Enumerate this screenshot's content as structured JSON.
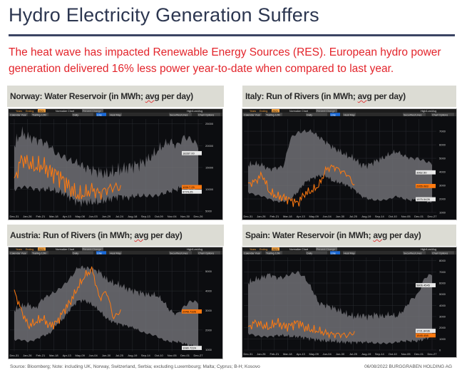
{
  "title": "Hydro Electricity Generation Suffers",
  "lead": "The heat wave has impacted Renewable Energy Sources (RES). European hydro power generation delivered 16% less power year-to-date when compared to last year.",
  "footer": {
    "source": "Source: Bloomberg; Note: including UK, Norway, Switzerland, Serbia; excluding Luxembourg; Malta; Cyprus; B-H; Kosovo",
    "date_company": "06/08/2022  BURGGRABEN HOLDING AG"
  },
  "toolbar": {
    "years": "Years",
    "ending": "Ending",
    "year": "2021",
    "normalize": "Normalize Chart",
    "percent": "Percent Change",
    "hla": "High/Low/Avg",
    "calendar": "Calendar Year",
    "trailing": "Trailing 12M",
    "daily": "Daily",
    "line": "Line",
    "heatmap": "Heat Map",
    "securities": "Securities/Lines",
    "options": "Chart Options"
  },
  "colors": {
    "accent": "#e3242b",
    "line": "#ff7a10",
    "band": "#6e6e70",
    "bg": "#0c0d10"
  },
  "chart_data": [
    {
      "type": "area",
      "panel": "norway",
      "title_pre": "Norway: Water Reservoir (in MWh; ",
      "title_u": "avg",
      "title_post": " per day)",
      "ylim": [
        4700,
        26100
      ],
      "yticks": [
        5000,
        10000,
        15000,
        20000,
        25000
      ],
      "xlabels": [
        "Dec-31",
        "Jan-26",
        "Feb-21",
        "Mar-18",
        "Apr-13",
        "May-08",
        "Jun-03",
        "Jun-29",
        "Jul-24",
        "Aug-18",
        "Sep-13",
        "Oct-09",
        "Nov-04",
        "Nov-30",
        "Dec-26"
      ],
      "value_labels": [
        {
          "v": 18287,
          "text": "18287.00",
          "hl": false
        },
        {
          "v": 10517,
          "text": "10517.25",
          "hl": true
        },
        {
          "v": 9774.25,
          "text": "9774.25",
          "hl": false
        }
      ],
      "high": [
        20000,
        23000,
        22000,
        21500,
        21000,
        20000,
        18000,
        17500,
        16500,
        16000,
        15000,
        14500,
        14000,
        13500,
        14000,
        14500,
        15000,
        15500,
        16000,
        17000,
        18500,
        20000,
        21000,
        20000,
        22000,
        21500,
        20000
      ],
      "low": [
        10000,
        10500,
        10500,
        10000,
        10000,
        10000,
        9500,
        9000,
        8000,
        7000,
        7000,
        7000,
        7000,
        7500,
        8000,
        8500,
        8000,
        8500,
        8500,
        8500,
        8500,
        9000,
        9500,
        10000,
        10500,
        10000,
        10000
      ],
      "current": [
        12000,
        17000,
        16000,
        15000,
        15500,
        14000,
        13500,
        12000,
        10000,
        8500,
        9000,
        10000,
        9000,
        10000,
        10500,
        10500
      ],
      "jitter": 2200
    },
    {
      "type": "area",
      "panel": "italy",
      "title_pre": "Italy: Run of Rivers (in MWh; ",
      "title_u": "avg",
      "title_post": " per day)",
      "ylim": [
        1000,
        7900
      ],
      "yticks": [
        1000,
        2000,
        3000,
        4000,
        5000,
        6000,
        7000
      ],
      "xlabels": [
        "Dec-31",
        "Jan-26",
        "Feb-21",
        "Mar-18",
        "Apr-13",
        "May-09",
        "Jun-04",
        "Jun-30",
        "Jul-25",
        "Aug-19",
        "Sep-14",
        "Oct-10",
        "Nov-05",
        "Dec-01",
        "Dec-27"
      ],
      "value_labels": [
        {
          "v": 3962.5,
          "text": "3962.50",
          "hl": false
        },
        {
          "v": 2955.083,
          "text": "2955.083",
          "hl": true
        },
        {
          "v": 1975.5426,
          "text": "1975.5426",
          "hl": false
        }
      ],
      "high": [
        4500,
        4600,
        4500,
        4200,
        4300,
        4400,
        6500,
        6900,
        7000,
        7000,
        6600,
        6200,
        5800,
        5500,
        5200,
        5000,
        4500,
        4500,
        4800,
        5000,
        5300,
        5500,
        5200,
        5000,
        5000,
        4800,
        4600
      ],
      "low": [
        2500,
        2300,
        2200,
        2000,
        1800,
        1800,
        2000,
        2500,
        3200,
        3500,
        3700,
        3700,
        3300,
        3200,
        3000,
        2700,
        2200,
        2000,
        1900,
        1900,
        2000,
        2200,
        2000,
        1900,
        2000,
        1900,
        1700
      ],
      "current": [
        3100,
        3300,
        3800,
        2500,
        2200,
        2100,
        1900,
        1700,
        2400,
        2600,
        3000,
        4200,
        4400,
        4100,
        3800,
        3000
      ],
      "jitter": 350
    },
    {
      "type": "area",
      "panel": "austria",
      "title_pre": "Austria: Run of Rivers (in MWh; ",
      "title_u": "avg",
      "title_post": " per day)",
      "ylim": [
        900,
        5720
      ],
      "yticks": [
        1000,
        2000,
        3000,
        4000,
        5000
      ],
      "xlabels": [
        "Dec-31",
        "Jan-26",
        "Feb-21",
        "Mar-18",
        "Apr-13",
        "May-09",
        "Jun-04",
        "Jun-30",
        "Jul-25",
        "Aug-19",
        "Sep-14",
        "Oct-10",
        "Nov-05",
        "Dec-01",
        "Dec-27"
      ],
      "value_labels": [
        {
          "v": 2948.73,
          "text": "2948.7326",
          "hl": true
        },
        {
          "v": 1080.72,
          "text": "1080.7224",
          "hl": false
        }
      ],
      "high": [
        3000,
        3200,
        3300,
        3100,
        3600,
        3800,
        4000,
        4300,
        4700,
        5200,
        5200,
        5100,
        5000,
        4600,
        4400,
        4300,
        4100,
        4000,
        3900,
        3800,
        3800,
        3500,
        3000,
        2800,
        3200,
        3500,
        3400
      ],
      "low": [
        1500,
        1500,
        1400,
        1500,
        1700,
        1800,
        2300,
        2600,
        3100,
        3500,
        3500,
        3300,
        3000,
        2600,
        2400,
        2300,
        2200,
        2100,
        1900,
        1800,
        1700,
        1500,
        1400,
        1400,
        1300,
        1200,
        1100
      ],
      "current": [
        4000,
        3000,
        2200,
        2400,
        2600,
        2200,
        2400,
        3000,
        3500,
        4200,
        4800,
        5100,
        3600,
        4000,
        2600,
        3000
      ],
      "jitter": 250
    },
    {
      "type": "area",
      "panel": "spain",
      "title_pre": "Spain: Water Reservoir (in MWh; ",
      "title_u": "avg",
      "title_post": " per day)",
      "ylim": [
        0,
        8300
      ],
      "yticks": [
        0,
        1000,
        2000,
        3000,
        4000,
        5000,
        6000,
        7000,
        8000
      ],
      "xlabels": [
        "Dec-31",
        "Jan-26",
        "Feb-21",
        "Mar-18",
        "Apr-13",
        "May-09",
        "Jun-04",
        "Jun-30",
        "Jul-25",
        "Aug-19",
        "Sep-14",
        "Oct-10",
        "Nov-05",
        "Dec-01",
        "Dec-27"
      ],
      "value_labels": [
        {
          "v": 5806.45,
          "text": "5806.4545",
          "hl": false
        },
        {
          "v": 1721.84,
          "text": "1721.8436",
          "hl": false
        },
        {
          "v": 1545.458,
          "text": "1545.458",
          "hl": true
        }
      ],
      "high": [
        6000,
        6300,
        6500,
        6800,
        6500,
        6500,
        6800,
        7000,
        6500,
        5500,
        4200,
        4000,
        3800,
        3500,
        3200,
        3000,
        3100,
        3000,
        3200,
        3000,
        3200,
        3000,
        3600,
        4500,
        5000,
        6500,
        6800
      ],
      "low": [
        1500,
        1300,
        1200,
        1200,
        1300,
        1300,
        1200,
        1200,
        1100,
        1000,
        900,
        800,
        800,
        700,
        700,
        700,
        700,
        700,
        600,
        600,
        600,
        700,
        800,
        800,
        800,
        1000,
        1200
      ],
      "current": [
        2000,
        2500,
        2200,
        2000,
        2500,
        2100,
        2200,
        2500,
        2000,
        1800,
        1700,
        1500,
        1400,
        1400,
        1300,
        1600
      ],
      "jitter": 450
    }
  ]
}
